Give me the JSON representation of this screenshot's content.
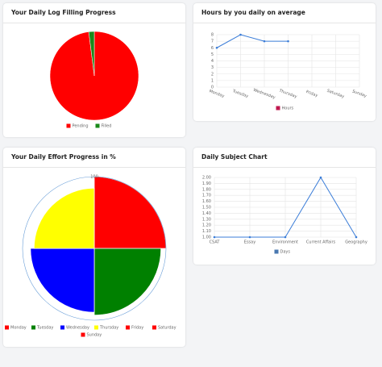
{
  "chart_data": [
    {
      "type": "pie",
      "title": "Your Daily Log Filling Progress",
      "categories": [
        "Pending",
        "Filled"
      ],
      "values": [
        98,
        2
      ],
      "colors": [
        "#ff0000",
        "#1a8a1a"
      ]
    },
    {
      "type": "line",
      "title": "Hours by you daily on average",
      "categories": [
        "Monday",
        "Tuesday",
        "Wednesday",
        "Thursday",
        "Friday",
        "Saturday",
        "Sunday"
      ],
      "series": [
        {
          "name": "Hours",
          "color": "#3b7dd8",
          "legend_color": "#c0184f",
          "values": [
            6,
            8,
            7,
            7,
            null,
            null,
            null
          ]
        }
      ],
      "ylim": [
        0,
        8
      ],
      "yticks": [
        0,
        1,
        2,
        3,
        4,
        5,
        6,
        7,
        8
      ],
      "grid": true
    },
    {
      "type": "polarArea",
      "title": "Your Daily Effort Progress in %",
      "categories": [
        "Monday",
        "Tuesday",
        "Wednesday",
        "Thursday",
        "Friday",
        "Saturday",
        "Sunday"
      ],
      "values": [
        100,
        93,
        89,
        84,
        null,
        null,
        null
      ],
      "colors": [
        "#ff0000",
        "#008000",
        "#0000ff",
        "#ffff00",
        "#ff0000",
        "#ff0000",
        "#ff0000"
      ],
      "rlim": [
        0,
        100
      ],
      "rticks": [
        100
      ]
    },
    {
      "type": "line",
      "title": "Daily Subject Chart",
      "categories": [
        "CSAT",
        "Essay",
        "Environment",
        "Current Affairs",
        "Geography"
      ],
      "series": [
        {
          "name": "Days",
          "color": "#3b7dd8",
          "legend_color": "#4a78b0",
          "values": [
            1,
            1,
            1,
            2,
            1
          ]
        }
      ],
      "ylim": [
        1,
        2
      ],
      "yticks": [
        {
          "value": 1,
          "label": "1.00"
        },
        {
          "value": 1.1,
          "label": "1.10"
        },
        {
          "value": 1.2,
          "label": "1.20"
        },
        {
          "value": 1.3,
          "label": "1.30"
        },
        {
          "value": 1.4,
          "label": "1.40"
        },
        {
          "value": 1.5,
          "label": "1.50"
        },
        {
          "value": 1.6,
          "label": "1.60"
        },
        {
          "value": 1.7,
          "label": "1.70"
        },
        {
          "value": 1.8,
          "label": "1.80"
        },
        {
          "value": 1.9,
          "label": "1.90"
        },
        {
          "value": 2,
          "label": "2.00"
        }
      ],
      "grid": true
    }
  ]
}
